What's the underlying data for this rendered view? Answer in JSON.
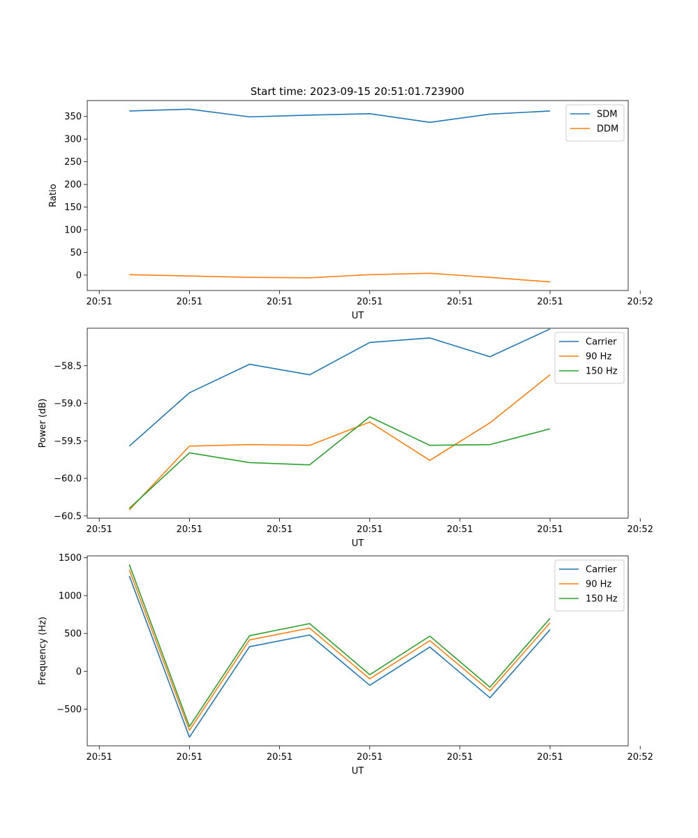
{
  "title": "Start time: 2023-09-15 20:51:01.723900",
  "colors": {
    "c0": "#1f77b4",
    "c1": "#ff7f0e",
    "c2": "#2ca02c"
  },
  "chart_data": [
    {
      "type": "line",
      "xlabel": "UT",
      "ylabel": "Ratio",
      "x": [
        1,
        2,
        3,
        4,
        5,
        6,
        7,
        8
      ],
      "xlim": [
        0.3,
        9.3
      ],
      "x_ticks": [
        0.5,
        2,
        3.5,
        5,
        6.5,
        8,
        9.5
      ],
      "x_tick_labels": [
        "20:51",
        "20:51",
        "20:51",
        "20:51",
        "20:51",
        "20:51",
        "20:52"
      ],
      "ylim": [
        -34,
        385
      ],
      "y_ticks": [
        0,
        50,
        100,
        150,
        200,
        250,
        300,
        350
      ],
      "y_tick_labels": [
        "0",
        "50",
        "100",
        "150",
        "200",
        "250",
        "300",
        "350"
      ],
      "legend_position": "top-right",
      "series": [
        {
          "name": "SDM",
          "color": "#1f77b4",
          "values": [
            362,
            366,
            349,
            353,
            356,
            337,
            355,
            362
          ]
        },
        {
          "name": "DDM",
          "color": "#ff7f0e",
          "values": [
            1,
            -2,
            -5,
            -6,
            1,
            4,
            -5,
            -15
          ]
        }
      ]
    },
    {
      "type": "line",
      "xlabel": "UT",
      "ylabel": "Power (dB)",
      "x": [
        1,
        2,
        3,
        4,
        5,
        6,
        7,
        8
      ],
      "xlim": [
        0.3,
        9.3
      ],
      "x_ticks": [
        0.5,
        2,
        3.5,
        5,
        6.5,
        8,
        9.5
      ],
      "x_tick_labels": [
        "20:51",
        "20:51",
        "20:51",
        "20:51",
        "20:51",
        "20:51",
        "20:52"
      ],
      "ylim": [
        -60.53,
        -58.0
      ],
      "y_ticks": [
        -60.5,
        -60.0,
        -59.5,
        -59.0,
        -58.5
      ],
      "y_tick_labels": [
        "−60.5",
        "−60.0",
        "−59.5",
        "−59.0",
        "−58.5"
      ],
      "legend_position": "top-right",
      "series": [
        {
          "name": "Carrier",
          "color": "#1f77b4",
          "values": [
            -59.57,
            -58.86,
            -58.48,
            -58.62,
            -58.19,
            -58.13,
            -58.38,
            -58.01
          ]
        },
        {
          "name": "90 Hz",
          "color": "#ff7f0e",
          "values": [
            -60.42,
            -59.57,
            -59.55,
            -59.56,
            -59.25,
            -59.76,
            -59.26,
            -58.62
          ]
        },
        {
          "name": "150 Hz",
          "color": "#2ca02c",
          "values": [
            -60.4,
            -59.66,
            -59.79,
            -59.82,
            -59.18,
            -59.56,
            -59.55,
            -59.34
          ]
        }
      ]
    },
    {
      "type": "line",
      "xlabel": "UT",
      "ylabel": "Frequency (Hz)",
      "x": [
        1,
        2,
        3,
        4,
        5,
        6,
        7,
        8
      ],
      "xlim": [
        0.3,
        9.3
      ],
      "x_ticks": [
        0.5,
        2,
        3.5,
        5,
        6.5,
        8,
        9.5
      ],
      "x_tick_labels": [
        "20:51",
        "20:51",
        "20:51",
        "20:51",
        "20:51",
        "20:51",
        "20:52"
      ],
      "ylim": [
        -985,
        1525
      ],
      "y_ticks": [
        -500,
        0,
        500,
        1000,
        1500
      ],
      "y_tick_labels": [
        "−500",
        "0",
        "500",
        "1000",
        "1500"
      ],
      "legend_position": "top-right",
      "series": [
        {
          "name": "Carrier",
          "color": "#1f77b4",
          "values": [
            1260,
            -870,
            325,
            480,
            -185,
            320,
            -350,
            550
          ]
        },
        {
          "name": "90 Hz",
          "color": "#ff7f0e",
          "values": [
            1340,
            -780,
            415,
            570,
            -100,
            405,
            -260,
            640
          ]
        },
        {
          "name": "150 Hz",
          "color": "#2ca02c",
          "values": [
            1410,
            -730,
            470,
            630,
            -45,
            465,
            -210,
            700
          ]
        }
      ]
    }
  ]
}
